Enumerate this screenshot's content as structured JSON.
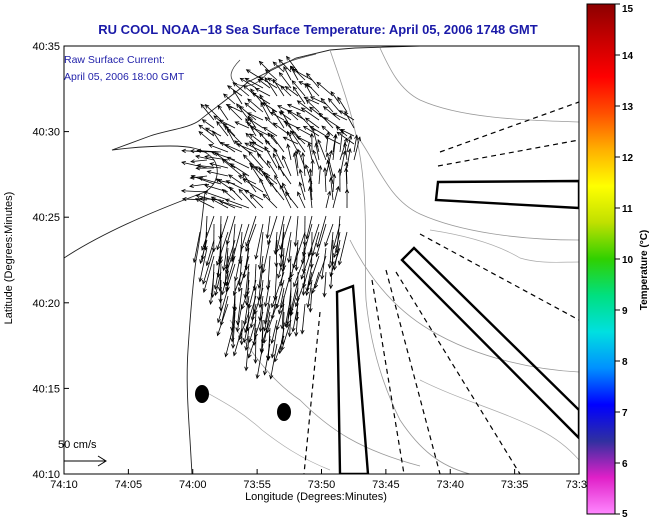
{
  "title": "RU COOL  NOAA−18  Sea Surface Temperature:  April 05, 2006 1748 GMT",
  "annotation_line1": "Raw Surface Current:",
  "annotation_line2": "April 05, 2006 18:00 GMT",
  "scale_label": "50 cm/s",
  "x_axis_label": "Longitude (Degrees:Minutes)",
  "y_axis_label": "Latitude (Degrees:Minutes)",
  "x_ticks": [
    "74:10",
    "74:05",
    "74:00",
    "73:55",
    "73:50",
    "73:45",
    "73:40",
    "73:35",
    "73:3"
  ],
  "y_ticks": [
    "40:35",
    "40:30",
    "40:25",
    "40:20",
    "40:15",
    "40:10"
  ],
  "colorbar": {
    "label": "Temperature (°C)",
    "ticks": [
      "15",
      "14",
      "13",
      "12",
      "11",
      "10",
      "9",
      "8",
      "7",
      "6",
      "5"
    ],
    "range": [
      5,
      15
    ],
    "stops": [
      "#ff88ff",
      "#e020c8",
      "#3030a0",
      "#0000ff",
      "#0090ff",
      "#00e0e0",
      "#00e080",
      "#30d000",
      "#c0e000",
      "#ffff00",
      "#ffb000",
      "#ff5000",
      "#ff0000",
      "#c80000",
      "#8c0000"
    ]
  },
  "colors": {
    "title": "#1a1aa8",
    "annotation": "#2222aa",
    "land": "#ffffff",
    "lines": "#000000",
    "contours": "#999999"
  }
}
